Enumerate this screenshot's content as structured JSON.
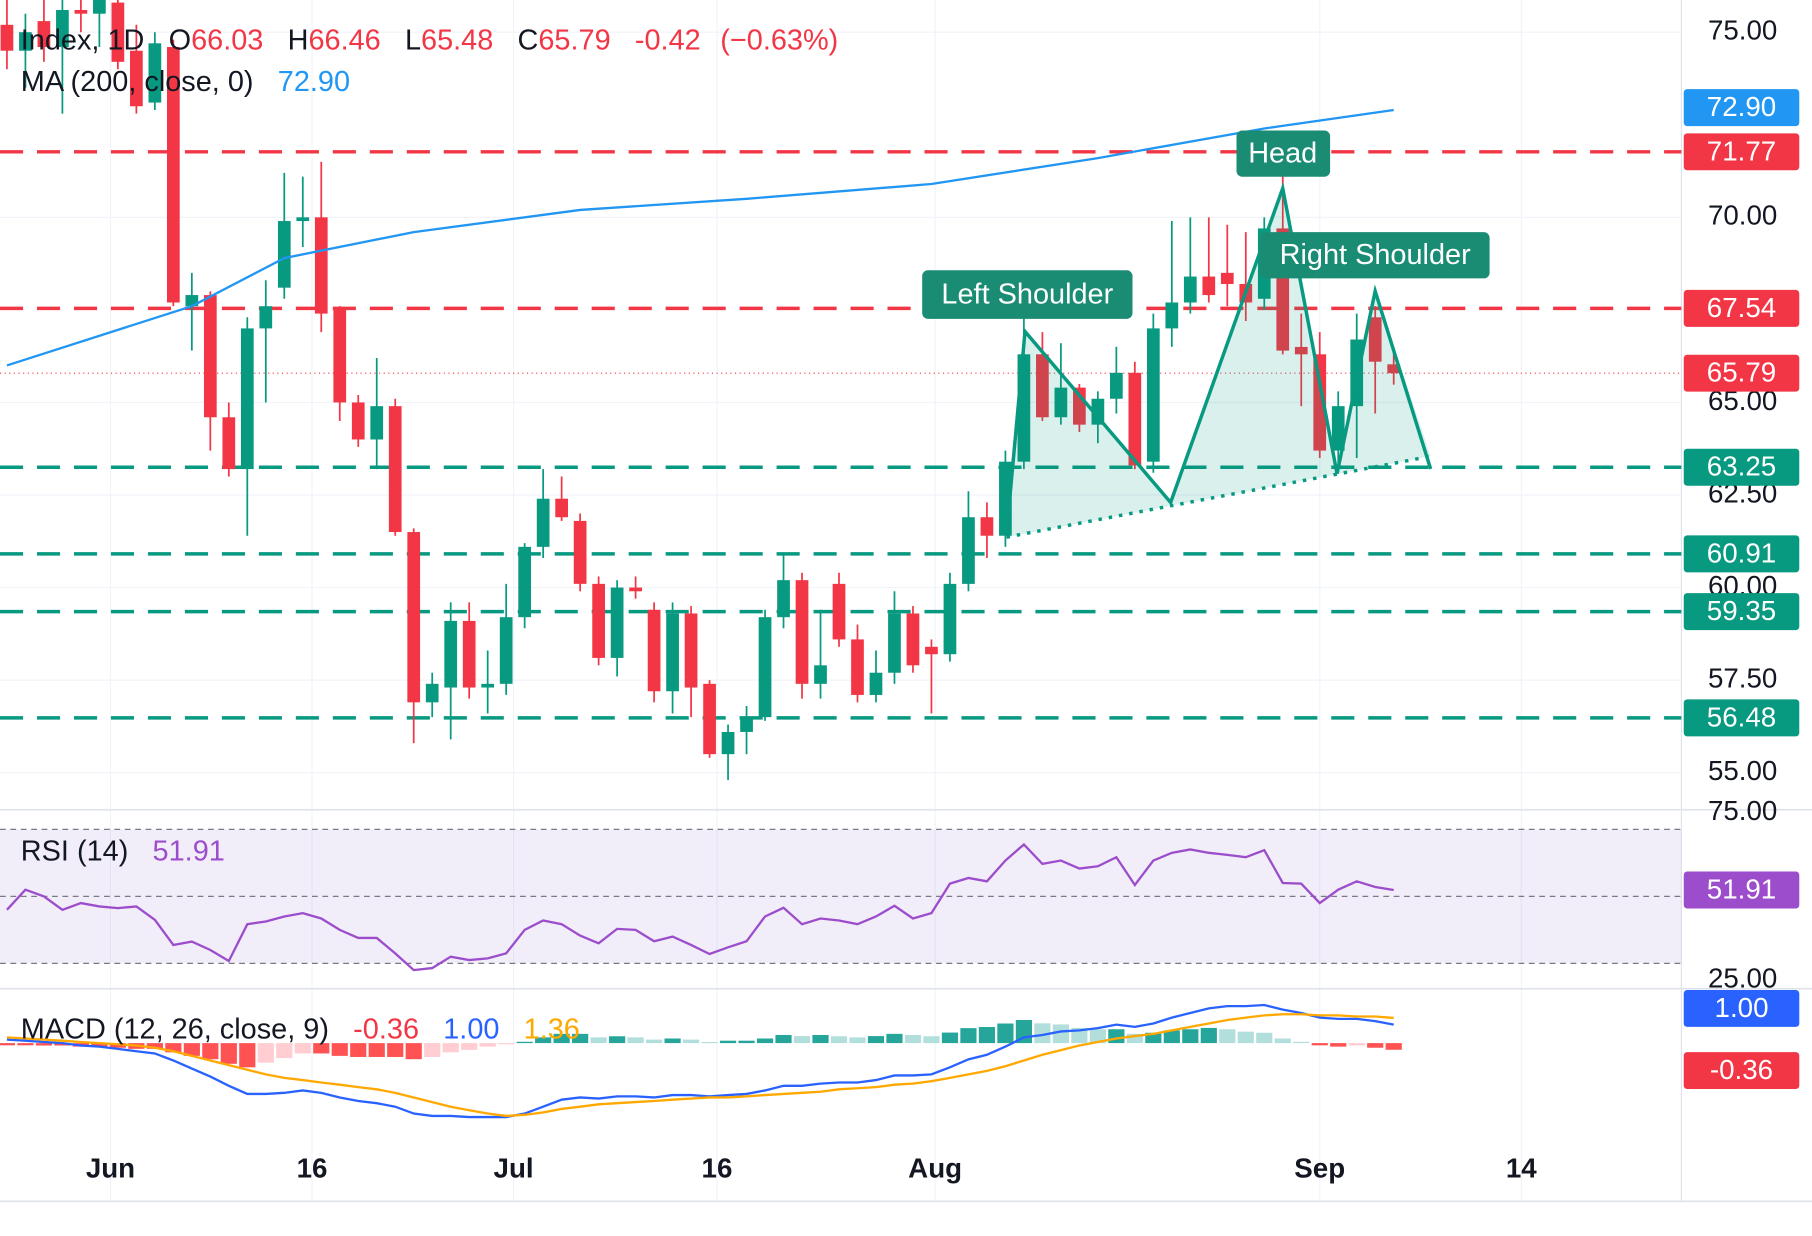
{
  "chart_data": {
    "type": "candlestick",
    "title": "Index, 1D",
    "ohlc_letters": [
      "O",
      "H",
      "L",
      "C"
    ],
    "change": -0.42,
    "change_pct": {
      "value": -0.63,
      "label": "(−0.63%)"
    },
    "up_color": "#089981",
    "down_color": "#f23645",
    "open": [
      75.2,
      74.5,
      75.3,
      74.6,
      75.6,
      75.5,
      75.8,
      74.5,
      73.1,
      74.6,
      67.6,
      67.9,
      64.6,
      63.2,
      67.0,
      68.1,
      69.9,
      70.0,
      67.5,
      65.0,
      64.0,
      64.9,
      61.5,
      56.9,
      57.3,
      59.1,
      57.3,
      57.4,
      59.2,
      61.1,
      62.4,
      61.8,
      60.1,
      58.1,
      60.0,
      59.4,
      57.2,
      59.3,
      57.4,
      55.5,
      56.1,
      56.5,
      59.2,
      60.2,
      57.4,
      60.1,
      58.6,
      57.1,
      57.7,
      59.3,
      58.4,
      58.2,
      60.1,
      61.9,
      61.4,
      63.4,
      66.3,
      64.6,
      65.4,
      64.4,
      65.1,
      65.8,
      63.4,
      67.0,
      67.7,
      68.4,
      68.5,
      68.2,
      67.8,
      69.7,
      66.5,
      66.3,
      63.7,
      64.9,
      67.3,
      66.03
    ],
    "high": [
      76.2,
      75.5,
      76.0,
      76.0,
      76.2,
      76.3,
      76.0,
      75.2,
      75.0,
      74.8,
      68.5,
      68.0,
      65.0,
      67.3,
      68.3,
      71.2,
      71.1,
      71.5,
      67.6,
      65.2,
      66.2,
      65.1,
      61.6,
      57.7,
      59.6,
      59.6,
      58.3,
      60.1,
      61.2,
      63.2,
      63.0,
      62.0,
      60.3,
      60.2,
      60.3,
      59.6,
      59.6,
      59.5,
      57.5,
      56.3,
      56.8,
      59.4,
      60.9,
      60.4,
      59.4,
      60.4,
      59.0,
      58.3,
      59.9,
      59.5,
      58.6,
      60.4,
      62.6,
      62.3,
      63.7,
      67.3,
      66.9,
      66.6,
      65.5,
      65.3,
      66.5,
      66.1,
      67.4,
      69.9,
      70.0,
      70.0,
      69.8,
      69.6,
      70.0,
      71.6,
      67.4,
      66.9,
      65.3,
      67.4,
      67.6,
      66.46
    ],
    "low": [
      74.0,
      73.5,
      74.2,
      72.8,
      75.0,
      74.6,
      74.0,
      72.8,
      72.9,
      67.6,
      66.4,
      63.7,
      63.0,
      61.4,
      65.0,
      67.8,
      69.2,
      66.9,
      64.5,
      63.8,
      63.2,
      61.4,
      55.8,
      56.5,
      55.9,
      57.0,
      56.6,
      57.1,
      58.9,
      60.8,
      61.8,
      59.9,
      57.9,
      57.6,
      59.7,
      56.9,
      56.6,
      56.5,
      55.4,
      54.8,
      55.5,
      56.4,
      58.9,
      57.0,
      57.0,
      58.4,
      56.9,
      56.9,
      57.4,
      57.7,
      56.6,
      58.0,
      59.9,
      60.8,
      61.1,
      63.2,
      64.5,
      64.4,
      64.2,
      63.9,
      64.7,
      63.2,
      63.1,
      66.5,
      67.4,
      67.7,
      67.6,
      67.2,
      67.5,
      66.3,
      64.9,
      63.5,
      63.1,
      63.5,
      64.7,
      65.48
    ],
    "close": [
      74.5,
      75.0,
      74.6,
      75.6,
      75.5,
      75.9,
      74.2,
      73.0,
      74.7,
      67.7,
      67.9,
      64.6,
      63.2,
      67.0,
      67.6,
      69.9,
      70.0,
      67.4,
      65.0,
      64.0,
      64.9,
      61.5,
      56.9,
      57.4,
      59.1,
      57.3,
      57.4,
      59.2,
      61.1,
      62.4,
      61.9,
      60.1,
      58.1,
      60.0,
      59.9,
      57.2,
      59.3,
      57.3,
      55.5,
      56.1,
      56.5,
      59.2,
      60.2,
      57.4,
      57.9,
      58.6,
      57.1,
      57.7,
      59.3,
      57.9,
      58.2,
      60.1,
      61.9,
      61.4,
      63.4,
      66.3,
      64.6,
      65.4,
      64.4,
      65.1,
      65.8,
      63.3,
      67.0,
      67.7,
      68.4,
      67.9,
      68.2,
      67.7,
      69.7,
      66.4,
      66.3,
      63.7,
      64.9,
      66.7,
      66.1,
      65.79
    ],
    "xlim": [
      -0.375,
      90.56
    ],
    "xticks": [
      {
        "value": 5.6,
        "label": "Jun"
      },
      {
        "value": 16.5,
        "label": "16"
      },
      {
        "value": 27.4,
        "label": "Jul"
      },
      {
        "value": 38.4,
        "label": "16"
      },
      {
        "value": 50.2,
        "label": "Aug"
      },
      {
        "value": 71,
        "label": "Sep"
      },
      {
        "value": 81.9,
        "label": "14"
      }
    ],
    "ylim": [
      54.03,
      75.87
    ],
    "yticks": [
      {
        "value": 75,
        "label": "75.00"
      },
      {
        "value": 70,
        "label": "70.00"
      },
      {
        "value": 65,
        "label": "65.00"
      },
      {
        "value": 62.5,
        "label": "62.50"
      },
      {
        "value": 60,
        "label": "60.00"
      },
      {
        "value": 57.5,
        "label": "57.50"
      },
      {
        "value": 55,
        "label": "55.00"
      }
    ],
    "levels": [
      {
        "value": 71.77,
        "color": "#f23645"
      },
      {
        "value": 67.54,
        "color": "#f23645"
      },
      {
        "value": 63.25,
        "color": "#089981"
      },
      {
        "value": 60.91,
        "color": "#089981"
      },
      {
        "value": 59.35,
        "color": "#089981"
      },
      {
        "value": 56.48,
        "color": "#089981"
      }
    ],
    "ma": {
      "name": "MA (200, close, 0)",
      "color": "#2196f3",
      "x": [
        0,
        10,
        15,
        22,
        31,
        40,
        50,
        59,
        68,
        75
      ],
      "values": [
        66.0,
        67.6,
        68.9,
        69.6,
        70.2,
        70.5,
        70.9,
        71.6,
        72.4,
        72.9
      ],
      "value_label": "72.90"
    },
    "annotations": [
      "Left Shoulder",
      "Head",
      "Right Shoulder"
    ],
    "rsi": {
      "name": "RSI (14)",
      "color": "#9c4dcc",
      "values": [
        46,
        52,
        50,
        46,
        48,
        47,
        46.5,
        47,
        43,
        35.5,
        36.5,
        34,
        30.7,
        41.7,
        42.5,
        44,
        45,
        43.4,
        40,
        37.6,
        37.6,
        33,
        28,
        28.6,
        32,
        31,
        31.5,
        33,
        40,
        42.8,
        41.7,
        38.3,
        36,
        40.3,
        40,
        36.6,
        38,
        35.5,
        32.8,
        34.8,
        36.6,
        44,
        46.6,
        41.7,
        43.4,
        42.8,
        41.7,
        44,
        47.2,
        43.4,
        45,
        53.8,
        55.5,
        54.5,
        60.7,
        65.5,
        59.7,
        60.7,
        58.3,
        59,
        61.7,
        53.4,
        60.7,
        63,
        64,
        63,
        62.4,
        61.7,
        63.8,
        54,
        53.8,
        48,
        52,
        54.5,
        52.8,
        51.91
      ],
      "ylim": [
        22.76,
        75.17
      ],
      "yticks": [
        {
          "value": 75,
          "label": "75.00"
        },
        {
          "value": 25,
          "label": "25.00"
        }
      ],
      "levels": [
        70,
        50,
        30
      ]
    },
    "macd": {
      "name": "MACD (12, 26, close, 9)",
      "ylim": [
        -6.06,
        2.875
      ],
      "macd": {
        "color": "#2962ff",
        "values": [
          0.19,
          0.13,
          0.06,
          0,
          -0.13,
          -0.19,
          -0.31,
          -0.44,
          -0.56,
          -0.94,
          -1.38,
          -1.81,
          -2.31,
          -2.75,
          -2.75,
          -2.69,
          -2.56,
          -2.69,
          -2.94,
          -3.13,
          -3.25,
          -3.44,
          -3.81,
          -3.94,
          -3.94,
          -4.0,
          -4.0,
          -4.0,
          -3.81,
          -3.44,
          -3.06,
          -2.94,
          -3.0,
          -2.88,
          -2.88,
          -2.94,
          -2.81,
          -2.81,
          -2.88,
          -2.81,
          -2.75,
          -2.56,
          -2.31,
          -2.31,
          -2.19,
          -2.13,
          -2.13,
          -2.0,
          -1.75,
          -1.75,
          -1.69,
          -1.31,
          -0.88,
          -0.63,
          -0.19,
          0.31,
          0.44,
          0.63,
          0.69,
          0.81,
          1.0,
          0.88,
          1.06,
          1.38,
          1.63,
          1.88,
          2.0,
          2.0,
          2.06,
          1.81,
          1.63,
          1.38,
          1.31,
          1.31,
          1.19,
          1.0
        ],
        "label": "1.00"
      },
      "signal": {
        "color": "#ffa800",
        "values": [
          0.31,
          0.25,
          0.19,
          0.13,
          0.06,
          0,
          -0.06,
          -0.13,
          -0.25,
          -0.44,
          -0.69,
          -0.94,
          -1.19,
          -1.44,
          -1.69,
          -1.88,
          -2.0,
          -2.13,
          -2.25,
          -2.38,
          -2.5,
          -2.69,
          -2.94,
          -3.19,
          -3.44,
          -3.63,
          -3.81,
          -3.94,
          -3.88,
          -3.75,
          -3.56,
          -3.44,
          -3.31,
          -3.25,
          -3.19,
          -3.13,
          -3.06,
          -3.0,
          -2.94,
          -2.94,
          -2.88,
          -2.81,
          -2.75,
          -2.69,
          -2.63,
          -2.5,
          -2.44,
          -2.38,
          -2.25,
          -2.19,
          -2.06,
          -1.88,
          -1.69,
          -1.5,
          -1.25,
          -0.94,
          -0.63,
          -0.38,
          -0.13,
          0.06,
          0.25,
          0.38,
          0.5,
          0.69,
          0.88,
          1.06,
          1.25,
          1.38,
          1.5,
          1.56,
          1.56,
          1.5,
          1.5,
          1.44,
          1.44,
          1.36
        ],
        "label": "1.36"
      },
      "histogram": {
        "values": [
          -0.12,
          -0.12,
          -0.13,
          -0.13,
          -0.19,
          -0.19,
          -0.25,
          -0.31,
          -0.31,
          -0.5,
          -0.69,
          -0.87,
          -1.12,
          -1.31,
          -1.06,
          -0.81,
          -0.56,
          -0.56,
          -0.69,
          -0.75,
          -0.75,
          -0.75,
          -0.87,
          -0.75,
          -0.5,
          -0.37,
          -0.19,
          -0.06,
          0.07,
          0.31,
          0.5,
          0.5,
          0.31,
          0.37,
          0.31,
          0.19,
          0.25,
          0.19,
          0.06,
          0.13,
          0.13,
          0.25,
          0.44,
          0.38,
          0.44,
          0.37,
          0.31,
          0.38,
          0.5,
          0.44,
          0.37,
          0.57,
          0.81,
          0.87,
          1.06,
          1.25,
          1.07,
          1.01,
          0.82,
          0.75,
          0.75,
          0.5,
          0.56,
          0.69,
          0.75,
          0.82,
          0.75,
          0.62,
          0.56,
          0.25,
          0.07,
          -0.12,
          -0.19,
          -0.13,
          -0.25,
          -0.36
        ],
        "label": "-0.36"
      }
    }
  }
}
